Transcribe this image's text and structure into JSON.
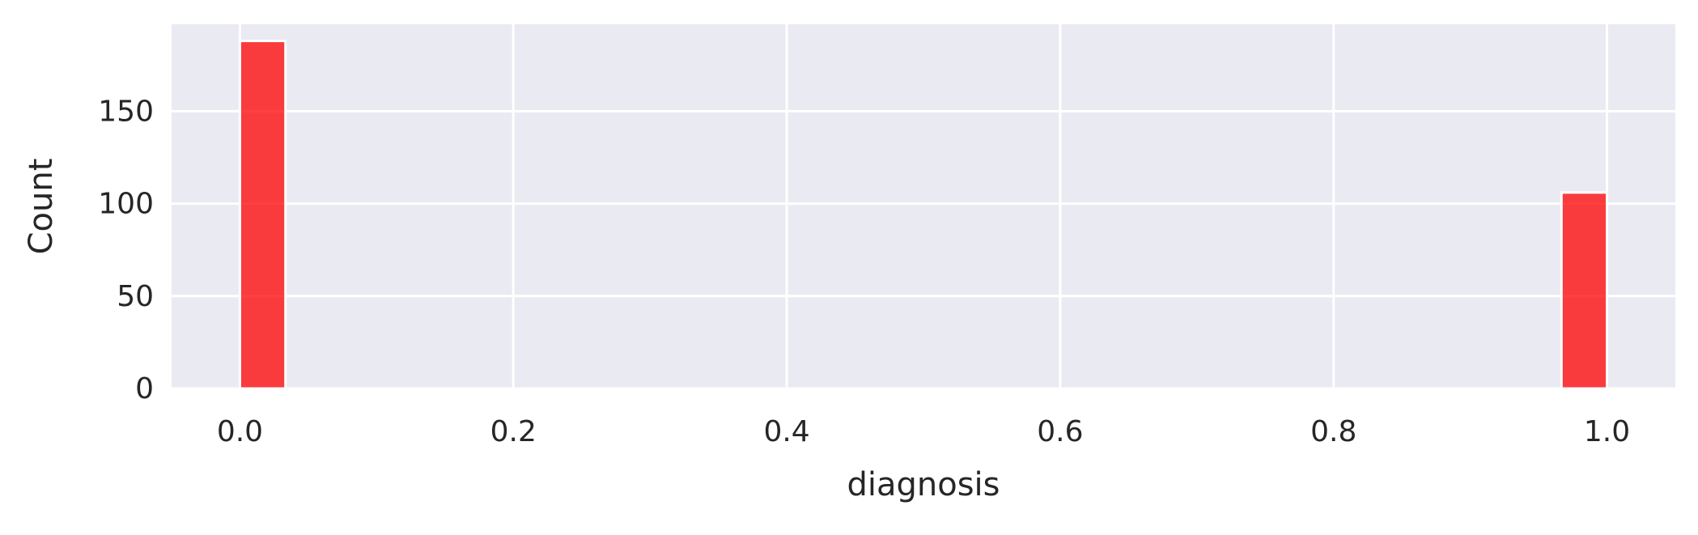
{
  "chart_data": {
    "type": "bar",
    "title": "",
    "xlabel": "diagnosis",
    "ylabel": "Count",
    "xlim": [
      -0.05,
      1.05
    ],
    "ylim": [
      0,
      197
    ],
    "x_ticks": [
      0.0,
      0.2,
      0.4,
      0.6,
      0.8,
      1.0
    ],
    "x_tick_labels": [
      "0.0",
      "0.2",
      "0.4",
      "0.6",
      "0.8",
      "1.0"
    ],
    "y_ticks": [
      0,
      50,
      100,
      150
    ],
    "y_tick_labels": [
      "0",
      "50",
      "100",
      "150"
    ],
    "bins": [
      {
        "x_start": 0.0,
        "x_end": 0.0333,
        "count": 188
      },
      {
        "x_start": 0.9667,
        "x_end": 1.0,
        "count": 106
      }
    ],
    "grid": true,
    "legend": false,
    "colors": {
      "background": "#eaeaf2",
      "grid": "#ffffff",
      "bar_fill": "#ff0000",
      "bar_opacity": 0.75,
      "bar_edge": "#ffffff",
      "text": "#262626"
    }
  }
}
